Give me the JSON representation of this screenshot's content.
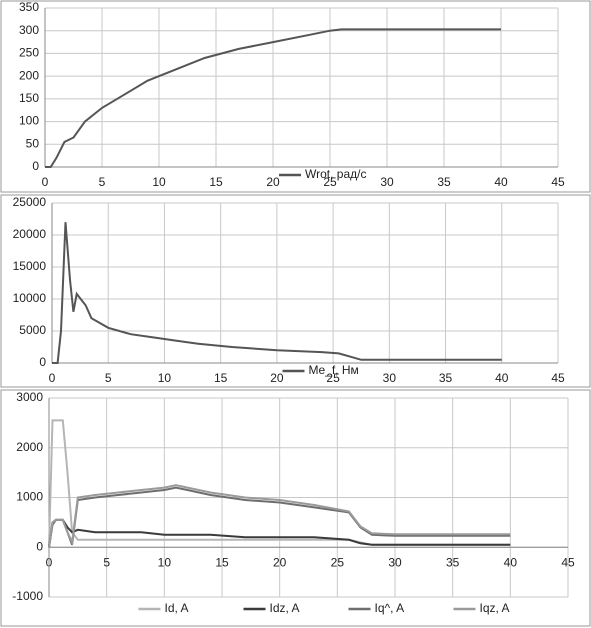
{
  "chart_data": [
    {
      "type": "line",
      "grid": true,
      "legend": "bottom",
      "x": [
        0,
        0.5,
        1,
        1.7,
        2.5,
        3.5,
        5,
        7,
        9,
        11.5,
        14,
        17,
        20,
        23,
        25,
        26,
        40
      ],
      "series": [
        {
          "name": "Wrot, рад/с",
          "color": "#555555",
          "values": [
            0,
            0,
            20,
            55,
            65,
            100,
            130,
            160,
            190,
            215,
            240,
            260,
            275,
            290,
            300,
            303,
            303
          ]
        }
      ],
      "xlim": [
        0,
        45
      ],
      "xticks": [
        0,
        5,
        10,
        15,
        20,
        25,
        30,
        35,
        40,
        45
      ],
      "ylim": [
        0,
        350
      ],
      "yticks": [
        0,
        50,
        100,
        150,
        200,
        250,
        300,
        350
      ]
    },
    {
      "type": "line",
      "grid": true,
      "legend": "bottom",
      "x": [
        0,
        0.5,
        0.8,
        1.2,
        1.6,
        1.9,
        2.2,
        3,
        3.5,
        4,
        5,
        7,
        9,
        11,
        13,
        16,
        20,
        24,
        25.5,
        26.5,
        27.5,
        40
      ],
      "series": [
        {
          "name": "Me_f, Нм",
          "color": "#555555",
          "values": [
            0,
            0,
            5000,
            22000,
            13000,
            8000,
            10800,
            9000,
            7000,
            6500,
            5500,
            4500,
            4000,
            3500,
            3000,
            2500,
            2000,
            1700,
            1500,
            1000,
            500,
            500
          ]
        }
      ],
      "xlim": [
        0,
        45
      ],
      "xticks": [
        0,
        5,
        10,
        15,
        20,
        25,
        30,
        35,
        40,
        45
      ],
      "ylim": [
        0,
        25000
      ],
      "yticks": [
        0,
        5000,
        10000,
        15000,
        20000,
        25000
      ]
    },
    {
      "type": "line",
      "grid": true,
      "legend": "bottom",
      "x": [
        0,
        0.3,
        0.6,
        1.2,
        1.6,
        2,
        2.5,
        4,
        6,
        8,
        10,
        11,
        12,
        14,
        17,
        20,
        23,
        26,
        27,
        28,
        30,
        35,
        40
      ],
      "series": [
        {
          "name": "Id, A",
          "color": "#b5b5b5",
          "values": [
            0,
            2550,
            2550,
            2550,
            1500,
            300,
            150,
            150,
            150,
            150,
            150,
            150,
            150,
            150,
            150,
            150,
            150,
            150,
            100,
            50,
            50,
            50,
            50
          ]
        },
        {
          "name": "Idz, A",
          "color": "#3a3a3a",
          "values": [
            0,
            500,
            550,
            550,
            400,
            300,
            350,
            300,
            300,
            300,
            250,
            250,
            250,
            250,
            200,
            200,
            200,
            150,
            80,
            50,
            50,
            50,
            50
          ]
        },
        {
          "name": "Iq^, A",
          "color": "#6e6e6e",
          "values": [
            0,
            450,
            550,
            550,
            300,
            50,
            950,
            1000,
            1050,
            1100,
            1150,
            1200,
            1150,
            1050,
            950,
            900,
            800,
            700,
            400,
            250,
            230,
            230,
            230
          ]
        },
        {
          "name": "Iqz, A",
          "color": "#9a9a9a",
          "values": [
            0,
            500,
            550,
            550,
            300,
            100,
            1000,
            1050,
            1100,
            1150,
            1200,
            1250,
            1200,
            1100,
            1000,
            950,
            850,
            720,
            420,
            280,
            260,
            260,
            260
          ]
        }
      ],
      "xlim": [
        0,
        45
      ],
      "xticks": [
        0,
        5,
        10,
        15,
        20,
        25,
        30,
        35,
        40,
        45
      ],
      "ylim": [
        -1000,
        3000
      ],
      "yticks": [
        -1000,
        0,
        1000,
        2000,
        3000
      ]
    }
  ]
}
